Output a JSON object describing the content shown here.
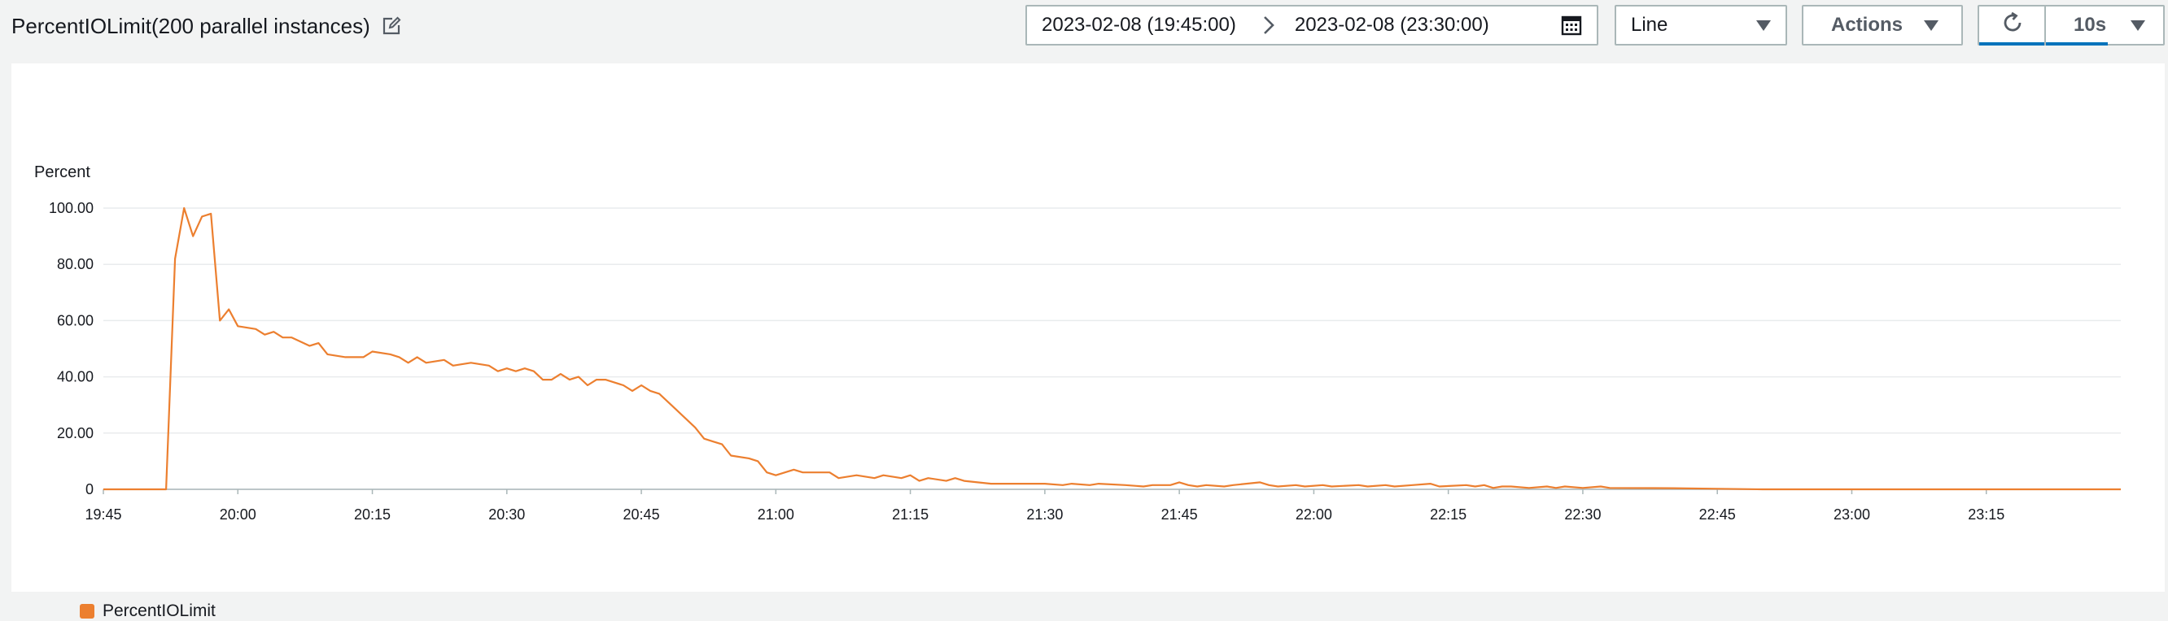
{
  "header": {
    "title": "PercentIOLimit(200 parallel instances)",
    "date_start": "2023-02-08 (19:45:00)",
    "date_end": "2023-02-08 (23:30:00)",
    "chart_type_select": "Line",
    "actions_label": "Actions",
    "refresh_interval": "10s"
  },
  "colors": {
    "series": "#ec7f2f",
    "accent": "#0073bb",
    "grid": "#e9ebed"
  },
  "icons": {
    "edit": "edit-icon",
    "date_arrow": "chevron-right-icon",
    "calendar": "calendar-icon",
    "refresh": "refresh-icon"
  },
  "chart_data": {
    "type": "line",
    "ylabel": "Percent",
    "ylim": [
      0,
      100
    ],
    "yticks": [
      0,
      20,
      40,
      60,
      80,
      100
    ],
    "ytick_labels": [
      "0",
      "20.00",
      "40.00",
      "60.00",
      "80.00",
      "100.00"
    ],
    "xlim": [
      "19:45",
      "23:30"
    ],
    "xticks": [
      "19:45",
      "20:00",
      "20:15",
      "20:30",
      "20:45",
      "21:00",
      "21:15",
      "21:30",
      "21:45",
      "22:00",
      "22:15",
      "22:30",
      "22:45",
      "23:00",
      "23:15"
    ],
    "grid": true,
    "legend_position": "bottom-left",
    "series": [
      {
        "name": "PercentIOLimit",
        "color": "#ec7f2f",
        "points": [
          [
            "19:45",
            0
          ],
          [
            "19:52",
            0
          ],
          [
            "19:53",
            82
          ],
          [
            "19:54",
            100
          ],
          [
            "19:55",
            90
          ],
          [
            "19:56",
            97
          ],
          [
            "19:57",
            98
          ],
          [
            "19:58",
            60
          ],
          [
            "19:59",
            64
          ],
          [
            "20:00",
            58
          ],
          [
            "20:02",
            57
          ],
          [
            "20:03",
            55
          ],
          [
            "20:04",
            56
          ],
          [
            "20:05",
            54
          ],
          [
            "20:06",
            54
          ],
          [
            "20:08",
            51
          ],
          [
            "20:09",
            52
          ],
          [
            "20:10",
            48
          ],
          [
            "20:12",
            47
          ],
          [
            "20:14",
            47
          ],
          [
            "20:15",
            49
          ],
          [
            "20:17",
            48
          ],
          [
            "20:18",
            47
          ],
          [
            "20:19",
            45
          ],
          [
            "20:20",
            47
          ],
          [
            "20:21",
            45
          ],
          [
            "20:23",
            46
          ],
          [
            "20:24",
            44
          ],
          [
            "20:26",
            45
          ],
          [
            "20:28",
            44
          ],
          [
            "20:29",
            42
          ],
          [
            "20:30",
            43
          ],
          [
            "20:31",
            42
          ],
          [
            "20:32",
            43
          ],
          [
            "20:33",
            42
          ],
          [
            "20:34",
            39
          ],
          [
            "20:35",
            39
          ],
          [
            "20:36",
            41
          ],
          [
            "20:37",
            39
          ],
          [
            "20:38",
            40
          ],
          [
            "20:39",
            37
          ],
          [
            "20:40",
            39
          ],
          [
            "20:41",
            39
          ],
          [
            "20:43",
            37
          ],
          [
            "20:44",
            35
          ],
          [
            "20:45",
            37
          ],
          [
            "20:46",
            35
          ],
          [
            "20:47",
            34
          ],
          [
            "20:49",
            28
          ],
          [
            "20:51",
            22
          ],
          [
            "20:52",
            18
          ],
          [
            "20:53",
            17
          ],
          [
            "20:54",
            16
          ],
          [
            "20:55",
            12
          ],
          [
            "20:57",
            11
          ],
          [
            "20:58",
            10
          ],
          [
            "20:59",
            6
          ],
          [
            "21:00",
            5
          ],
          [
            "21:02",
            7
          ],
          [
            "21:03",
            6
          ],
          [
            "21:06",
            6
          ],
          [
            "21:07",
            4
          ],
          [
            "21:09",
            5
          ],
          [
            "21:11",
            4
          ],
          [
            "21:12",
            5
          ],
          [
            "21:14",
            4
          ],
          [
            "21:15",
            5
          ],
          [
            "21:16",
            3
          ],
          [
            "21:17",
            4
          ],
          [
            "21:19",
            3
          ],
          [
            "21:20",
            4
          ],
          [
            "21:21",
            3
          ],
          [
            "21:24",
            2
          ],
          [
            "21:27",
            2
          ],
          [
            "21:30",
            2
          ],
          [
            "21:32",
            1.5
          ],
          [
            "21:33",
            2
          ],
          [
            "21:35",
            1.5
          ],
          [
            "21:36",
            2
          ],
          [
            "21:39",
            1.5
          ],
          [
            "21:41",
            1
          ],
          [
            "21:42",
            1.5
          ],
          [
            "21:44",
            1.5
          ],
          [
            "21:45",
            2.5
          ],
          [
            "21:46",
            1.5
          ],
          [
            "21:47",
            1
          ],
          [
            "21:48",
            1.5
          ],
          [
            "21:50",
            1
          ],
          [
            "21:51",
            1.5
          ],
          [
            "21:54",
            2.5
          ],
          [
            "21:55",
            1.5
          ],
          [
            "21:56",
            1
          ],
          [
            "21:58",
            1.5
          ],
          [
            "21:59",
            1
          ],
          [
            "22:01",
            1.5
          ],
          [
            "22:02",
            1
          ],
          [
            "22:05",
            1.5
          ],
          [
            "22:06",
            1
          ],
          [
            "22:08",
            1.5
          ],
          [
            "22:09",
            1
          ],
          [
            "22:11",
            1.5
          ],
          [
            "22:13",
            2
          ],
          [
            "22:14",
            1
          ],
          [
            "22:17",
            1.5
          ],
          [
            "22:18",
            1
          ],
          [
            "22:19",
            1.5
          ],
          [
            "22:20",
            0.5
          ],
          [
            "22:21",
            1
          ],
          [
            "22:22",
            1
          ],
          [
            "22:24",
            0.5
          ],
          [
            "22:26",
            1
          ],
          [
            "22:27",
            0.5
          ],
          [
            "22:28",
            1
          ],
          [
            "22:30",
            0.5
          ],
          [
            "22:32",
            1
          ],
          [
            "22:33",
            0.5
          ],
          [
            "22:40",
            0.4
          ],
          [
            "22:45",
            0.2
          ],
          [
            "22:50",
            0
          ],
          [
            "23:30",
            0
          ]
        ]
      }
    ]
  },
  "legend": {
    "items": [
      {
        "label": "PercentIOLimit",
        "color": "#ec7f2f"
      }
    ]
  }
}
